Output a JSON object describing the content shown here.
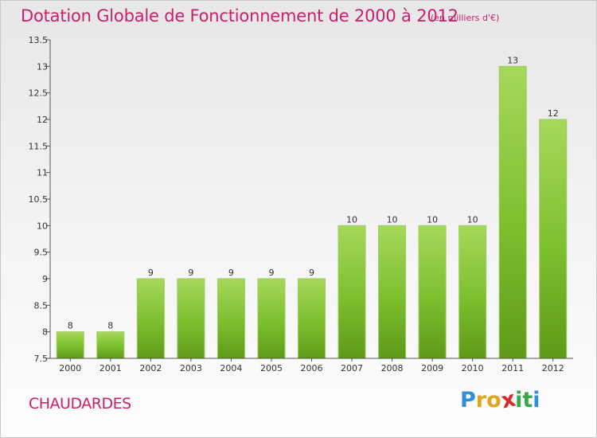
{
  "header": {
    "title": "Dotation Globale de Fonctionnement de 2000 à 2012",
    "subtitle": "(en milliers d'€)"
  },
  "footer": {
    "place": "CHAUDARDES",
    "logo": {
      "letters": [
        "P",
        "r",
        "o",
        "x",
        "i",
        "t",
        "i"
      ],
      "colors": [
        "#2f8fd8",
        "#e0a61c",
        "#e0a61c",
        "#d82a2a",
        "#3aa84a",
        "#3aa84a",
        "#2f8fd8"
      ]
    }
  },
  "chart_data": {
    "type": "bar",
    "title": "Dotation Globale de Fonctionnement de 2000 à 2012",
    "subtitle": "(en milliers d'€)",
    "xlabel": "",
    "ylabel": "",
    "categories": [
      "2000",
      "2001",
      "2002",
      "2003",
      "2004",
      "2005",
      "2006",
      "2007",
      "2008",
      "2009",
      "2010",
      "2011",
      "2012"
    ],
    "values": [
      8,
      8,
      9,
      9,
      9,
      9,
      9,
      10,
      10,
      10,
      10,
      13,
      12
    ],
    "value_labels": [
      "8",
      "8",
      "9",
      "9",
      "9",
      "9",
      "9",
      "10",
      "10",
      "10",
      "10",
      "13",
      "12"
    ],
    "ylim": [
      7.5,
      13.5
    ],
    "yticks": [
      7.5,
      8,
      8.5,
      9,
      9.5,
      10,
      10.5,
      11,
      11.5,
      12,
      12.5,
      13,
      13.5
    ],
    "ytick_labels": [
      "7.5",
      "8",
      "8.5",
      "9",
      "9.5",
      "10",
      "10.5",
      "11",
      "11.5",
      "12",
      "12.5",
      "13",
      "13.5"
    ],
    "grid": false,
    "bar_color": "#7cbf2e",
    "bar_color_light": "#a6d85a",
    "bar_color_dark": "#5e9a18",
    "axis_color": "#555555"
  }
}
